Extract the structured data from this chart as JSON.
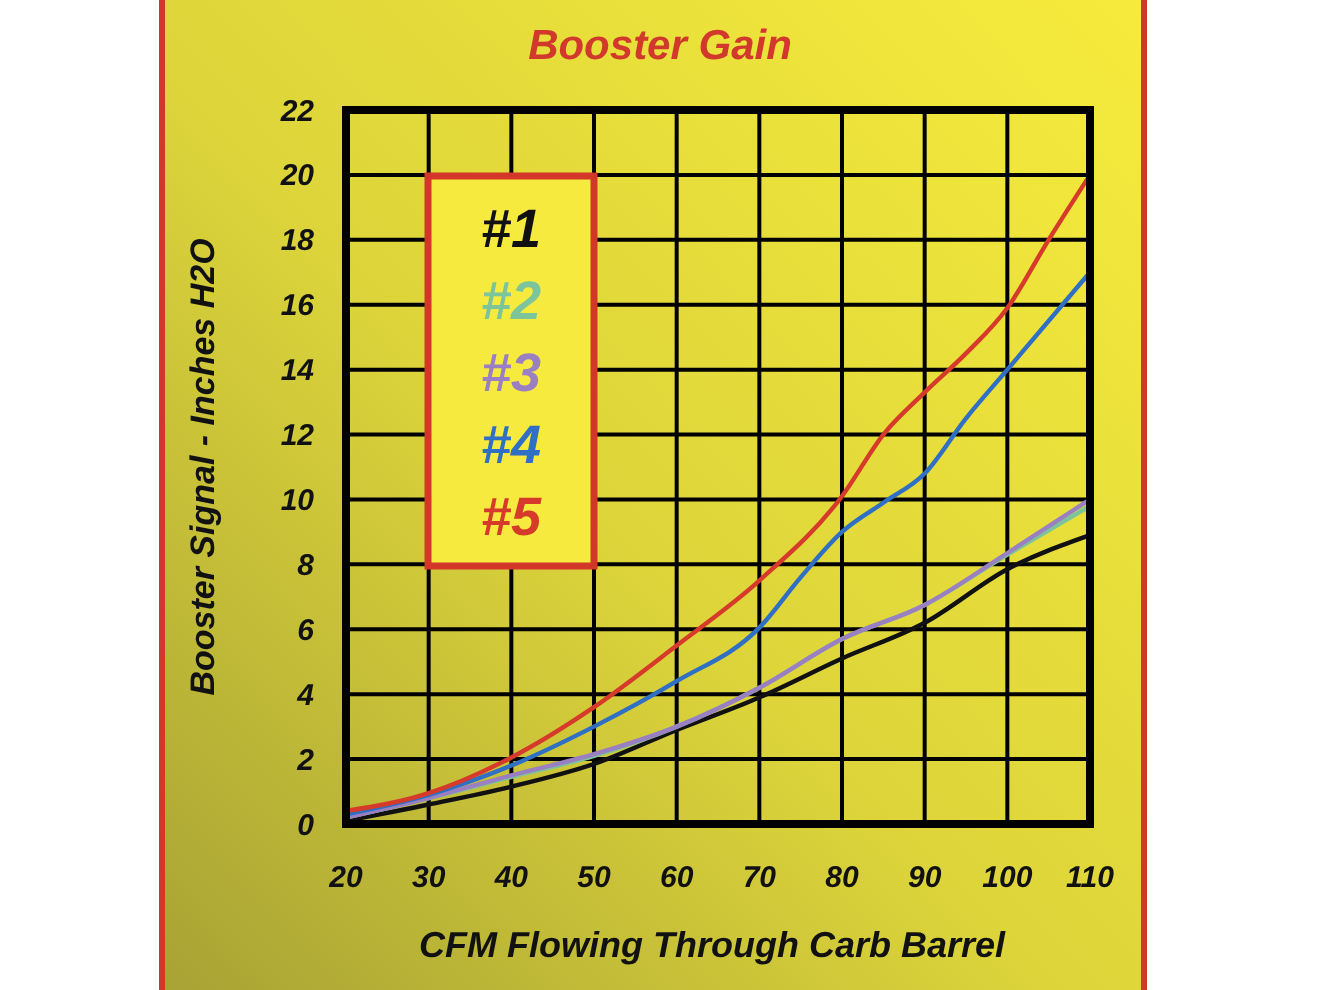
{
  "chart_data": {
    "type": "line",
    "title": "Booster Gain",
    "xlabel": "CFM Flowing Through Carb Barrel",
    "ylabel": "Booster Signal - Inches H2O",
    "x": [
      20,
      30,
      40,
      50,
      60,
      70,
      80,
      90,
      100,
      110
    ],
    "xlim": [
      20,
      110
    ],
    "xticks": [
      20,
      30,
      40,
      50,
      60,
      70,
      80,
      90,
      100,
      110
    ],
    "ylim": [
      0,
      22
    ],
    "yticks": [
      0,
      2,
      4,
      6,
      8,
      10,
      12,
      14,
      16,
      18,
      20,
      22
    ],
    "grid": true,
    "legend": "top left",
    "line_style": "solid",
    "series": [
      {
        "name": "#1",
        "color": "#111111",
        "values": [
          0.1,
          0.6,
          1.15,
          1.85,
          2.9,
          3.9,
          5.1,
          6.2,
          7.85,
          8.9
        ]
      },
      {
        "name": "#2",
        "color": "#7cc59a",
        "values": [
          0.2,
          0.8,
          1.45,
          2.1,
          3.0,
          4.2,
          5.7,
          6.75,
          8.3,
          9.8
        ]
      },
      {
        "name": "#3",
        "color": "#9a80c2",
        "values": [
          0.2,
          0.8,
          1.5,
          2.15,
          3.0,
          4.2,
          5.7,
          6.75,
          8.35,
          10.0
        ]
      },
      {
        "name": "#4",
        "color": "#2f6fc4",
        "x": [
          20,
          30,
          40,
          50,
          60,
          70,
          75,
          80,
          85,
          90,
          95,
          100,
          110
        ],
        "values": [
          0.3,
          0.9,
          1.8,
          3.0,
          4.4,
          6.05,
          7.6,
          9.0,
          9.9,
          10.8,
          12.5,
          14.0,
          17.0
        ]
      },
      {
        "name": "#5",
        "color": "#d63a2a",
        "x": [
          20,
          30,
          40,
          50,
          60,
          70,
          80,
          85,
          90,
          95,
          100,
          105,
          110
        ],
        "values": [
          0.4,
          0.95,
          2.05,
          3.6,
          5.5,
          7.5,
          10.1,
          12.0,
          13.3,
          14.5,
          15.9,
          18.0,
          20.0
        ]
      }
    ]
  }
}
